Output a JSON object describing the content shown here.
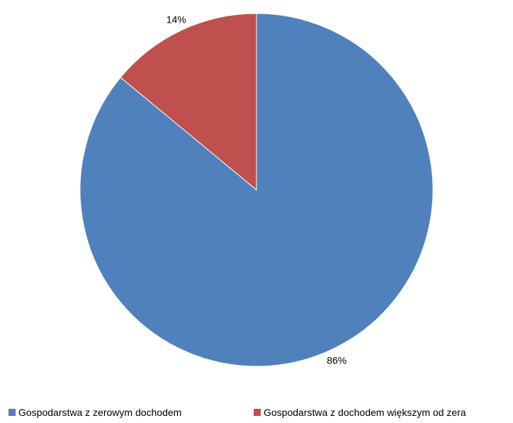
{
  "chart_data": {
    "type": "pie",
    "slices": [
      {
        "label": "Gospodarstwa z zerowym dochodem",
        "value": 86,
        "display": "86%",
        "color": "#4F81BD"
      },
      {
        "label": "Gospodarstwa z dochodem większym od zera",
        "value": 14,
        "display": "14%",
        "color": "#C0504D"
      }
    ],
    "start": "12 o'clock",
    "direction": "clockwise",
    "legend_position": "bottom"
  }
}
